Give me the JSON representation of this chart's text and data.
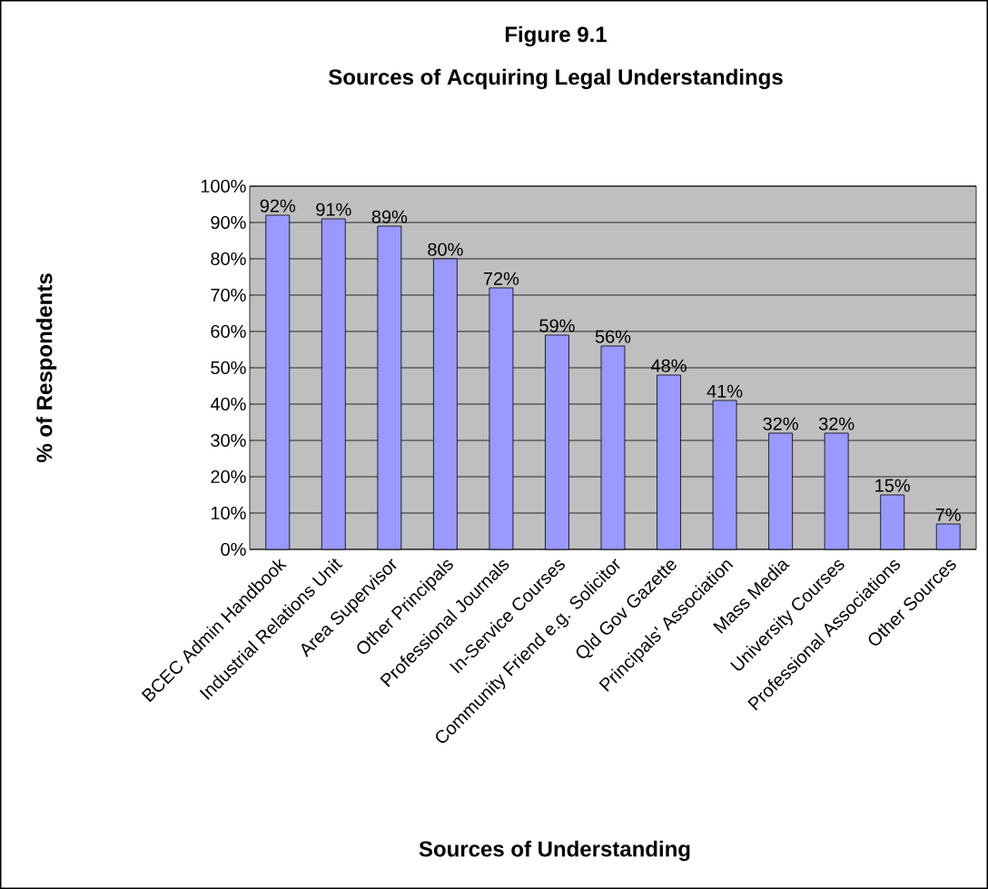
{
  "chart_data": {
    "type": "bar",
    "title": "Figure 9.1",
    "subtitle": "Sources of Acquiring Legal Understandings",
    "xlabel": "Sources of Understanding",
    "ylabel": "% of Respondents",
    "categories": [
      "BCEC Admin Handbook",
      "Industrial Relations Unit",
      "Area Supervisor",
      "Other Principals",
      "Professional Journals",
      "In-Service Courses",
      "Community Friend e.g. Solicitor",
      "Qld Gov Gazette",
      "Principals' Association",
      "Mass Media",
      "University Courses",
      "Professional Associations",
      "Other Sources"
    ],
    "values": [
      92,
      91,
      89,
      80,
      72,
      59,
      56,
      48,
      41,
      32,
      32,
      15,
      7
    ],
    "value_labels": [
      "92%",
      "91%",
      "89%",
      "80%",
      "72%",
      "59%",
      "56%",
      "48%",
      "41%",
      "32%",
      "32%",
      "15%",
      "7%"
    ],
    "color": "#9999ff",
    "ylim": [
      0,
      100
    ],
    "yticks": [
      {
        "value": 0,
        "label": "0%"
      },
      {
        "value": 10,
        "label": "10%"
      },
      {
        "value": 20,
        "label": "20%"
      },
      {
        "value": 30,
        "label": "30%"
      },
      {
        "value": 40,
        "label": "40%"
      },
      {
        "value": 50,
        "label": "50%"
      },
      {
        "value": 60,
        "label": "60%"
      },
      {
        "value": 70,
        "label": "70%"
      },
      {
        "value": 80,
        "label": "80%"
      },
      {
        "value": 90,
        "label": "90%"
      },
      {
        "value": 100,
        "label": "100%"
      }
    ],
    "grid": "y"
  }
}
